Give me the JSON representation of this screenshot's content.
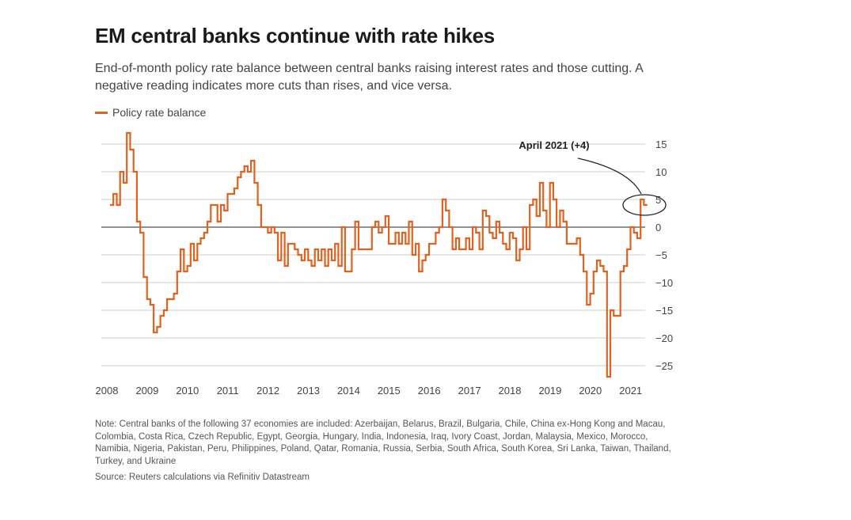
{
  "title": "EM central banks continue with rate hikes",
  "subtitle": "End-of-month policy rate balance between central banks raising interest rates and those cutting. A negative reading indicates more cuts than rises, and vice versa.",
  "legend": {
    "label": "Policy rate balance",
    "color": "#e0621e"
  },
  "note": "Note: Central banks of the following 37 economies are included: Azerbaijan, Belarus, Brazil, Bulgaria, Chile, China ex-Hong Kong and Macau, Colombia, Costa Rica, Czech Republic, Egypt, Georgia, Hungary, India, Indonesia, Iraq, Ivory Coast, Jordan, Malaysia, Mexico, Morocco, Namibia, Nigeria, Pakistan, Peru, Philippines, Poland, Qatar, Romania, Russia, Serbia, South Africa, South Korea, Sri Lanka, Taiwan, Thailand, Turkey, and Ukraine",
  "source": "Source: Reuters calculations via Refinitiv Datastream",
  "chart_data": {
    "type": "line",
    "step": true,
    "title": "EM central banks continue with rate hikes",
    "series": [
      {
        "name": "Policy rate balance",
        "color": "#e0621e",
        "start": "2008-01",
        "frequency": "monthly",
        "values": [
          4,
          6,
          4,
          10,
          8,
          17,
          14,
          10,
          1,
          -1,
          -9,
          -13,
          -14,
          -19,
          -18,
          -16,
          -15,
          -13,
          -13,
          -12,
          -8,
          -4,
          -8,
          -7,
          -3,
          -6,
          -3,
          -2,
          -1,
          1,
          4,
          4,
          1,
          4,
          3,
          6,
          6,
          7,
          9,
          10,
          11,
          10,
          12,
          8,
          4,
          0,
          0,
          -1,
          0,
          -1,
          -6,
          -1,
          -7,
          -3,
          -3,
          -4,
          -5,
          -6,
          -4,
          -6,
          -7,
          -4,
          -6,
          -4,
          -7,
          -4,
          -6,
          -3,
          -7,
          0,
          -8,
          -8,
          -4,
          1,
          -4,
          -4,
          -4,
          -4,
          0,
          1,
          -1,
          0,
          2,
          -3,
          -3,
          -1,
          -3,
          -1,
          -3,
          1,
          -5,
          -3,
          -8,
          -6,
          -5,
          -3,
          -3,
          -1,
          0,
          5,
          3,
          0,
          -4,
          -2,
          -4,
          -4,
          -2,
          -4,
          0,
          -1,
          -4,
          3,
          2,
          -1,
          -2,
          1,
          -1,
          -3,
          -4,
          -1,
          -2,
          -6,
          -4,
          0,
          -4,
          4,
          5,
          2,
          8,
          3,
          0,
          8,
          5,
          0,
          3,
          1,
          -3,
          -3,
          -3,
          -2,
          -5,
          -8,
          -14,
          -12,
          -8,
          -6,
          -7,
          -8,
          -27,
          -15,
          -16,
          -16,
          -8,
          -7,
          -4,
          0,
          -1,
          -2,
          5,
          4
        ]
      }
    ],
    "x_ticks": [
      "2008",
      "2009",
      "2010",
      "2011",
      "2012",
      "2013",
      "2014",
      "2015",
      "2016",
      "2017",
      "2018",
      "2019",
      "2020",
      "2021"
    ],
    "y_ticks": [
      15,
      10,
      5,
      0,
      -5,
      -10,
      -15,
      -20,
      -25
    ],
    "ylim": [
      -27,
      18
    ],
    "grid": true,
    "y_axis_side": "right",
    "legend_position": "top-left",
    "annotation": {
      "label": "April 2021 (+4)",
      "target": "2021-04"
    }
  }
}
